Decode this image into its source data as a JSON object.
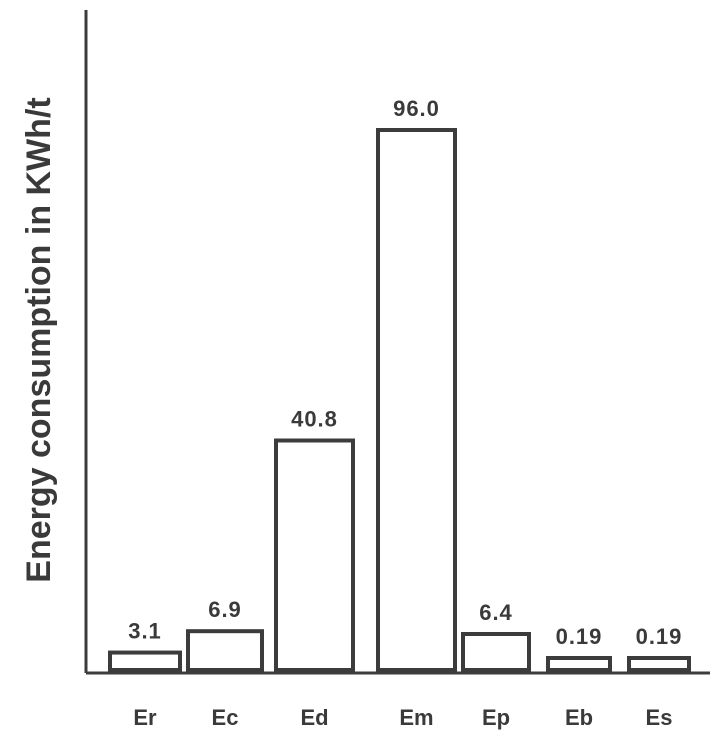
{
  "chart_data": {
    "type": "bar",
    "title": "",
    "xlabel": "",
    "ylabel": "Energy consumption in KWh/t",
    "categories": [
      "Er",
      "Ec",
      "Ed",
      "Em",
      "Ep",
      "Eb",
      "Es"
    ],
    "values": [
      3.1,
      6.9,
      40.8,
      96.0,
      6.4,
      0.19,
      0.19
    ],
    "value_labels": [
      "3.1",
      "6.9",
      "40.8",
      "96.0",
      "6.4",
      "0.19",
      "0.19"
    ],
    "ylim": [
      0,
      120
    ],
    "grid": false,
    "legend": "none",
    "colors": {
      "bar_fill": "#ffffff",
      "bar_stroke": "#3c3c3c",
      "text": "#3a3a3a"
    }
  }
}
